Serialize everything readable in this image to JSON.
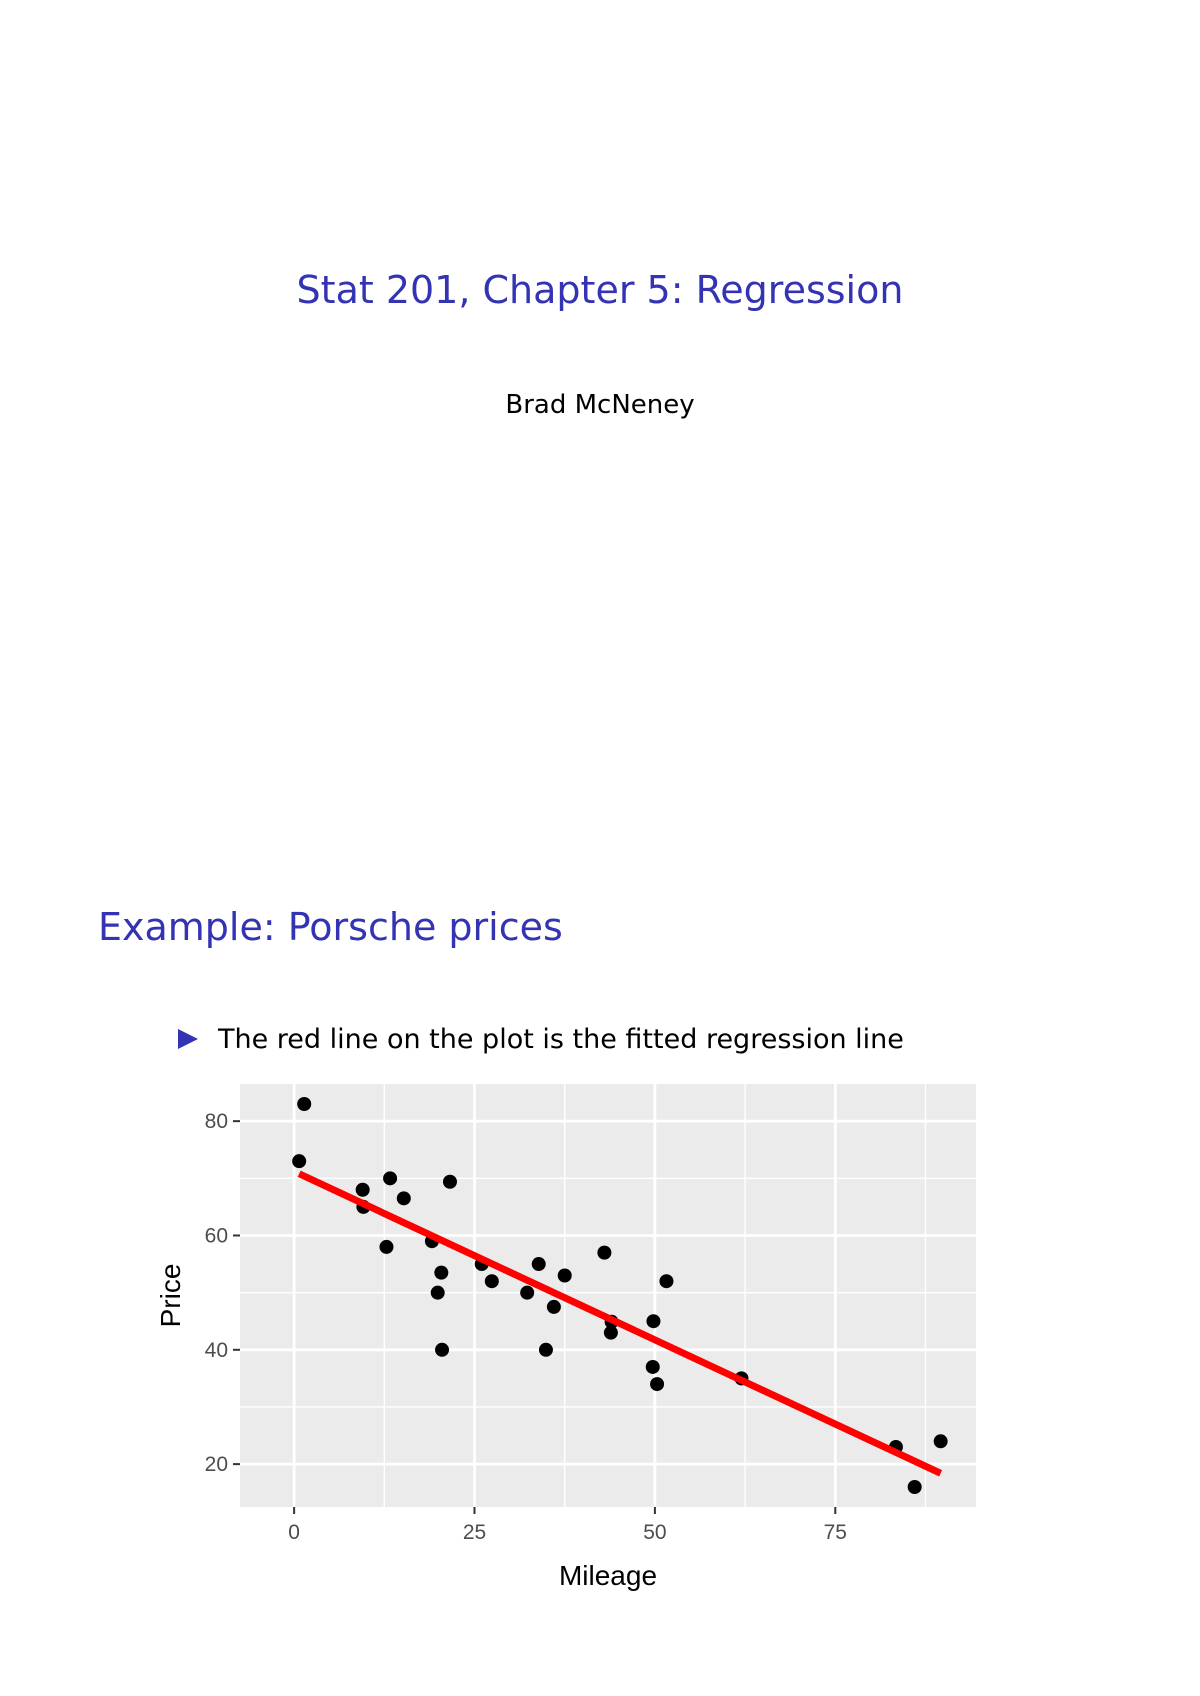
{
  "title_slide": {
    "title": "Stat 201, Chapter 5: Regression",
    "author": "Brad McNeney"
  },
  "frame": {
    "title": "Example: Porsche prices",
    "bullets": [
      "The red line on the plot is the fitted regression line"
    ]
  },
  "colors": {
    "title_blue": "#3333b3",
    "panel_bg": "#ebebeb",
    "grid": "#ffffff",
    "point": "#000000",
    "fit_line": "#ff0000"
  },
  "chart_data": {
    "type": "scatter",
    "xlabel": "Mileage",
    "ylabel": "Price",
    "xlim": [
      -7.5,
      94.5
    ],
    "ylim": [
      12.5,
      86.5
    ],
    "x_ticks": [
      0,
      25,
      50,
      75
    ],
    "y_ticks": [
      20,
      40,
      60,
      80
    ],
    "grid": true,
    "points": [
      {
        "x": 0.7,
        "y": 73
      },
      {
        "x": 1.4,
        "y": 83
      },
      {
        "x": 9.5,
        "y": 68
      },
      {
        "x": 9.6,
        "y": 65
      },
      {
        "x": 12.8,
        "y": 58
      },
      {
        "x": 13.3,
        "y": 70
      },
      {
        "x": 15.2,
        "y": 66.5
      },
      {
        "x": 19.1,
        "y": 59
      },
      {
        "x": 19.9,
        "y": 50
      },
      {
        "x": 20.4,
        "y": 53.5
      },
      {
        "x": 20.5,
        "y": 40
      },
      {
        "x": 21.6,
        "y": 69.4
      },
      {
        "x": 26,
        "y": 55
      },
      {
        "x": 27.4,
        "y": 52
      },
      {
        "x": 32.3,
        "y": 50
      },
      {
        "x": 33.9,
        "y": 55
      },
      {
        "x": 34.9,
        "y": 40
      },
      {
        "x": 36,
        "y": 47.5
      },
      {
        "x": 37.5,
        "y": 53
      },
      {
        "x": 43,
        "y": 57
      },
      {
        "x": 43.9,
        "y": 43
      },
      {
        "x": 44,
        "y": 44.9
      },
      {
        "x": 49.7,
        "y": 37
      },
      {
        "x": 49.8,
        "y": 45
      },
      {
        "x": 50.3,
        "y": 34
      },
      {
        "x": 51.6,
        "y": 52
      },
      {
        "x": 62,
        "y": 35
      },
      {
        "x": 83.4,
        "y": 23
      },
      {
        "x": 86,
        "y": 16
      },
      {
        "x": 89.6,
        "y": 24
      }
    ],
    "fitted_line": {
      "x": [
        0.7,
        89.6
      ],
      "y": [
        70.8,
        18.4
      ]
    }
  }
}
